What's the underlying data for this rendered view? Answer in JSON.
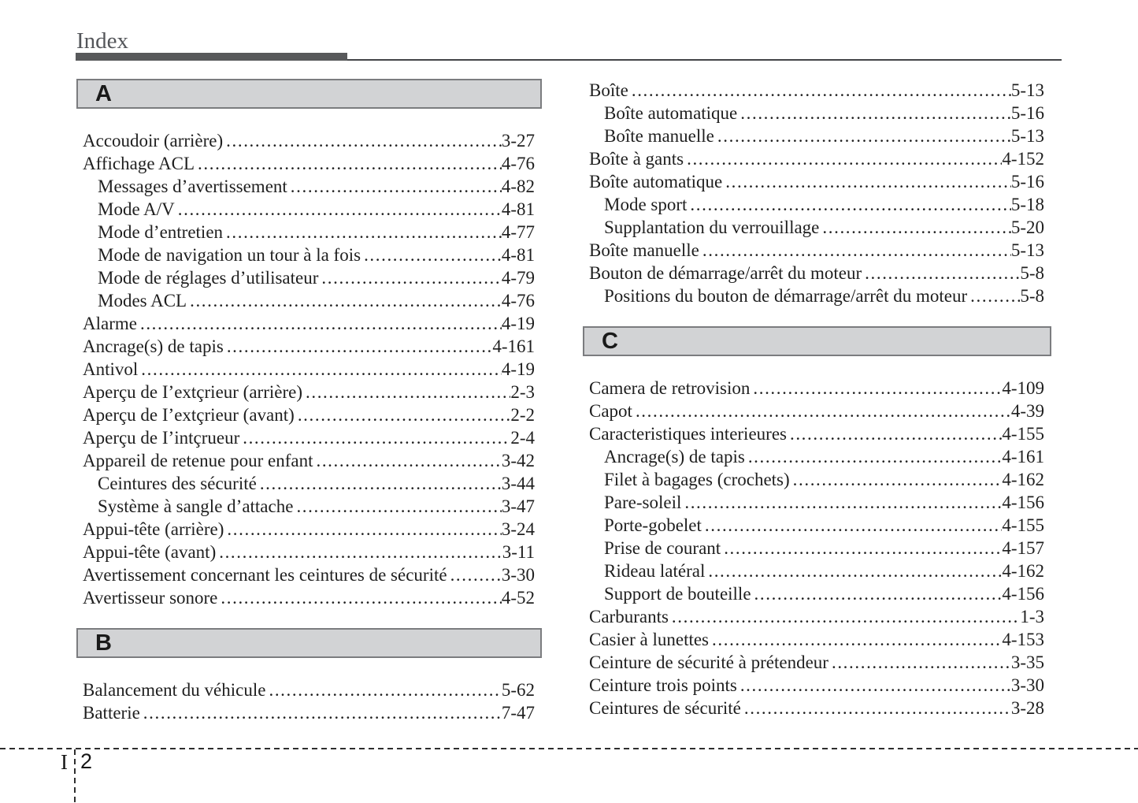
{
  "header": {
    "title": "Index"
  },
  "footer": {
    "section_letter": "I",
    "page_number": "2"
  },
  "colors": {
    "title_bar": "#58595b",
    "section_header_bg": "#d2d3d5",
    "section_header_border": "#7b7c7f",
    "text": "#1f1f1f"
  },
  "columns": [
    {
      "blocks": [
        {
          "type": "section",
          "letter": "A"
        },
        {
          "type": "entries",
          "items": [
            {
              "label": "Accoudoir (arrière)",
              "page": "3-27",
              "indent": 0
            },
            {
              "label": "Affichage ACL",
              "page": "4-76",
              "indent": 0
            },
            {
              "label": "Messages d’avertissement",
              "page": "4-82",
              "indent": 1
            },
            {
              "label": "Mode A/V",
              "page": "4-81",
              "indent": 1
            },
            {
              "label": "Mode d’entretien",
              "page": "4-77",
              "indent": 1
            },
            {
              "label": "Mode de navigation un tour à la fois",
              "page": "4-81",
              "indent": 1
            },
            {
              "label": "Mode de réglages d’utilisateur",
              "page": "4-79",
              "indent": 1
            },
            {
              "label": "Modes ACL",
              "page": "4-76",
              "indent": 1
            },
            {
              "label": "Alarme",
              "page": "4-19",
              "indent": 0
            },
            {
              "label": "Ancrage(s) de tapis",
              "page": "4-161",
              "indent": 0
            },
            {
              "label": "Antivol",
              "page": "4-19",
              "indent": 0
            },
            {
              "label": "Aperçu de I’extçrieur (arrière)",
              "page": "2-3",
              "indent": 0
            },
            {
              "label": "Aperçu de I’extçrieur (avant)",
              "page": "2-2",
              "indent": 0
            },
            {
              "label": "Aperçu de I’intçrueur",
              "page": "2-4",
              "indent": 0
            },
            {
              "label": "Appareil de retenue pour enfant",
              "page": "3-42",
              "indent": 0
            },
            {
              "label": "Ceintures des sécurité",
              "page": "3-44",
              "indent": 1
            },
            {
              "label": "Système à sangle d’attache",
              "page": "3-47",
              "indent": 1
            },
            {
              "label": "Appui-tête (arrière)",
              "page": "3-24",
              "indent": 0
            },
            {
              "label": "Appui-tête (avant)",
              "page": "3-11",
              "indent": 0
            },
            {
              "label": "Avertissement concernant les ceintures de sécurité",
              "page": "3-30",
              "indent": 0
            },
            {
              "label": "Avertisseur sonore",
              "page": "4-52",
              "indent": 0
            }
          ]
        },
        {
          "type": "section",
          "letter": "B"
        },
        {
          "type": "entries",
          "items": [
            {
              "label": "Balancement du véhicule",
              "page": "5-62",
              "indent": 0
            },
            {
              "label": "Batterie",
              "page": "7-47",
              "indent": 0
            }
          ]
        }
      ]
    },
    {
      "blocks": [
        {
          "type": "entries",
          "items": [
            {
              "label": "Boîte",
              "page": "5-13",
              "indent": 0
            },
            {
              "label": "Boîte automatique",
              "page": "5-16",
              "indent": 1
            },
            {
              "label": "Boîte manuelle",
              "page": "5-13",
              "indent": 1
            },
            {
              "label": "Boîte à gants",
              "page": "4-152",
              "indent": 0
            },
            {
              "label": "Boîte automatique",
              "page": "5-16",
              "indent": 0
            },
            {
              "label": "Mode sport",
              "page": "5-18",
              "indent": 1
            },
            {
              "label": "Supplantation du verrouillage",
              "page": "5-20",
              "indent": 1
            },
            {
              "label": "Boîte manuelle",
              "page": "5-13",
              "indent": 0
            },
            {
              "label": "Bouton de démarrage/arrêt du moteur",
              "page": "5-8",
              "indent": 0
            },
            {
              "label": "Positions du bouton de démarrage/arrêt du moteur",
              "page": "5-8",
              "indent": 1
            }
          ]
        },
        {
          "type": "section",
          "letter": "C"
        },
        {
          "type": "entries",
          "items": [
            {
              "label": "Camera de retrovision",
              "page": "4-109",
              "indent": 0
            },
            {
              "label": "Capot",
              "page": "4-39",
              "indent": 0
            },
            {
              "label": "Caracteristiques interieures",
              "page": "4-155",
              "indent": 0
            },
            {
              "label": "Ancrage(s) de tapis",
              "page": "4-161",
              "indent": 1
            },
            {
              "label": "Filet à bagages (crochets)",
              "page": "4-162",
              "indent": 1
            },
            {
              "label": "Pare-soleil",
              "page": "4-156",
              "indent": 1
            },
            {
              "label": "Porte-gobelet",
              "page": "4-155",
              "indent": 1
            },
            {
              "label": "Prise de courant",
              "page": "4-157",
              "indent": 1
            },
            {
              "label": "Rideau latéral",
              "page": "4-162",
              "indent": 1
            },
            {
              "label": "Support de bouteille",
              "page": "4-156",
              "indent": 1
            },
            {
              "label": "Carburants",
              "page": "1-3",
              "indent": 0
            },
            {
              "label": "Casier à lunettes",
              "page": "4-153",
              "indent": 0
            },
            {
              "label": "Ceinture de sécurité à prétendeur",
              "page": "3-35",
              "indent": 0
            },
            {
              "label": "Ceinture trois points",
              "page": "3-30",
              "indent": 0
            },
            {
              "label": "Ceintures de sécurité",
              "page": "3-28",
              "indent": 0
            }
          ]
        }
      ]
    }
  ]
}
